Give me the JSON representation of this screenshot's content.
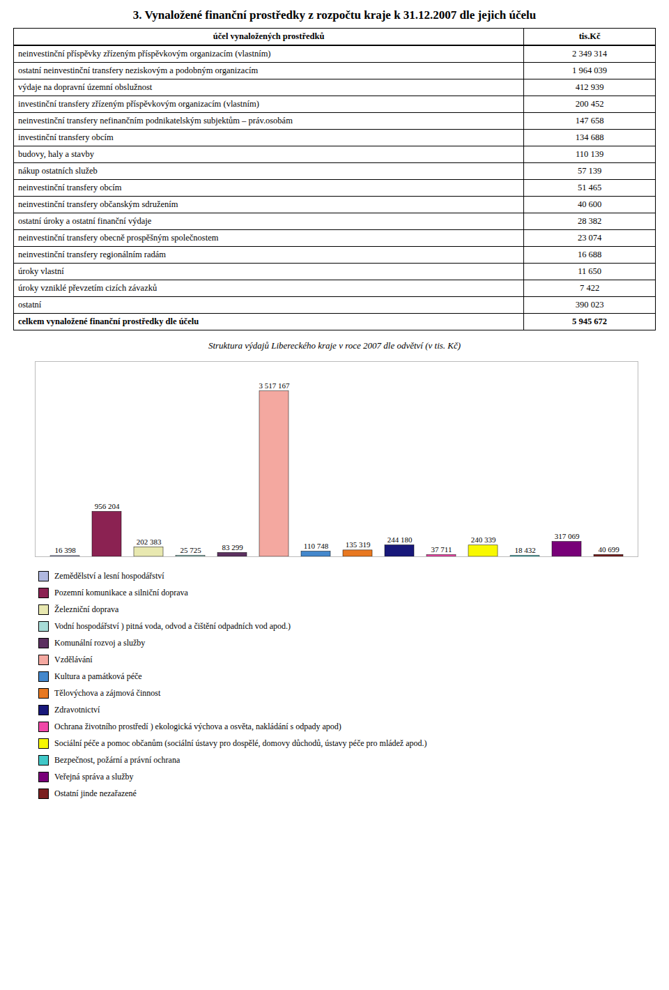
{
  "chart_data": [
    {
      "type": "table",
      "title": "3. Vynaložené finanční prostředky z rozpočtu kraje k 31.12.2007 dle jejich účelu",
      "columns": [
        "účel vynaložených prostředků",
        "tis.Kč"
      ],
      "categories": [
        "neinvestinční příspěvky zřízeným příspěvkovým organizacím (vlastním)",
        "ostatní neinvestinční transfery neziskovým a podobným organizacím",
        "výdaje na dopravní územní obslužnost",
        "investinční transfery zřízeným příspěvkovým organizacím (vlastním)",
        "neinvestinční transfery nefinančním podnikatelským subjektům – práv.osobám",
        "investinční transfery obcím",
        "budovy, haly a stavby",
        "nákup ostatních služeb",
        "neinvestinční transfery obcím",
        "neinvestinční transfery občanským sdružením",
        "ostatní úroky a ostatní finanční výdaje",
        "neinvestinční transfery obecně prospěšným společnostem",
        "neinvestinční transfery regionálním radám",
        "úroky vlastní",
        "úroky vzniklé převzetím cizích závazků",
        "ostatní",
        "celkem vynaložené finanční prostředky dle účelu"
      ],
      "values": [
        2349314,
        1964039,
        412939,
        200452,
        147658,
        134688,
        110139,
        57139,
        51465,
        40600,
        28382,
        23074,
        16688,
        11650,
        7422,
        390023,
        5945672
      ],
      "value_labels": [
        "2 349 314",
        "1 964 039",
        "412 939",
        "200 452",
        "147 658",
        "134 688",
        "110 139",
        "57 139",
        "51 465",
        "40 600",
        "28 382",
        "23 074",
        "16 688",
        "11 650",
        "7 422",
        "390 023",
        "5 945 672"
      ]
    },
    {
      "type": "bar",
      "title": "Struktura výdajů Libereckého kraje v roce 2007 dle odvětví (v tis. Kč)",
      "categories": [
        "Zemědělství a lesní hospodářství",
        "Pozemní komunikace a silniční doprava",
        "Železniční doprava",
        "Vodní hospodářství ) pitná voda, odvod a čištění odpadních vod apod.)",
        "Komunální rozvoj a služby",
        "Vzdělávání",
        "Kultura a památková péče",
        "Tělovýchova a zájmová činnost",
        "Zdravotnictví",
        "Ochrana životního prostředí ) ekologická výchova a osvěta, nakládání s odpady apod)",
        "Sociální péče a pomoc občanům (sociální ústavy pro dospělé, domovy důchodů, ústavy péče pro mládež apod.)",
        "Bezpečnost, požární a právní ochrana",
        "Veřejná správa a služby",
        "Ostatní jinde nezařazené"
      ],
      "values": [
        16398,
        956204,
        202383,
        25725,
        83299,
        3517167,
        110748,
        135319,
        244180,
        37711,
        240339,
        18432,
        317069,
        40699
      ],
      "value_labels": [
        "16 398",
        "956 204",
        "202 383",
        "25 725",
        "83 299",
        "3 517 167",
        "110 748",
        "135 319",
        "244 180",
        "37 711",
        "240 339",
        "18 432",
        "317 069",
        "40 699"
      ],
      "colors": [
        "#b0b8e0",
        "#8b2252",
        "#e8e8b0",
        "#a8ddd8",
        "#5c3060",
        "#f4a8a0",
        "#4488cc",
        "#e87820",
        "#18187a",
        "#f048a8",
        "#f8f800",
        "#40c8c8",
        "#780078",
        "#7a2020"
      ],
      "ylim": [
        0,
        4150257.06
      ],
      "data_labels": true,
      "tick_labels": false,
      "grid": false,
      "legend": "bottom"
    }
  ]
}
